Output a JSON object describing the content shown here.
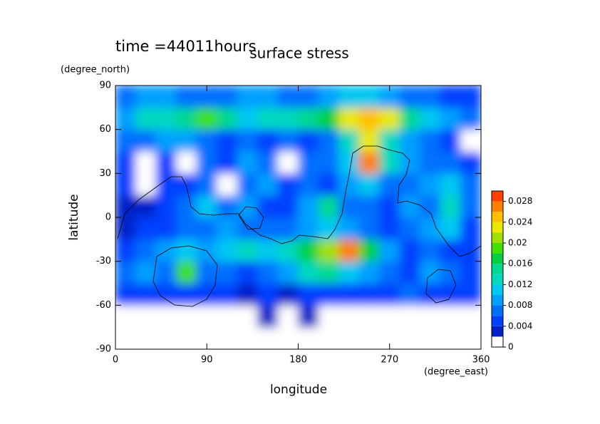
{
  "chart_data": {
    "type": "contour",
    "title": "time =44011hours",
    "subtitle": "surface stress",
    "xlabel": "longitude",
    "xunit": "(degree_east)",
    "ylabel": "latitude",
    "yunit": "(degree_north)",
    "xlim": [
      0,
      360
    ],
    "xticks": [
      0,
      90,
      180,
      270,
      360
    ],
    "ylim": [
      -90,
      90
    ],
    "yticks": [
      -90,
      -60,
      -30,
      0,
      30,
      60,
      90
    ],
    "x": [
      10,
      30,
      50,
      70,
      90,
      110,
      130,
      150,
      170,
      190,
      210,
      230,
      250,
      270,
      290,
      310,
      330,
      350
    ],
    "y": [
      -82.5,
      -67.5,
      -52.5,
      -37.5,
      -22.5,
      -7.5,
      7.5,
      22.5,
      37.5,
      52.5,
      67.5,
      82.5
    ],
    "z": [
      [
        0,
        0,
        0,
        0,
        0,
        0,
        0,
        0,
        0,
        0,
        0,
        0,
        0,
        0,
        0,
        0,
        0,
        0
      ],
      [
        0,
        0,
        0,
        0,
        0,
        0,
        0,
        0.003,
        0,
        0.003,
        0,
        0,
        0,
        0,
        0,
        0,
        0,
        0
      ],
      [
        0.004,
        0.005,
        0.004,
        0.005,
        0.005,
        0.004,
        0.003,
        0.004,
        0.003,
        0.005,
        0.004,
        0.005,
        0.004,
        0.005,
        0.006,
        0.004,
        0.005,
        0.004
      ],
      [
        0.006,
        0.008,
        0.006,
        0.018,
        0.007,
        0.006,
        0.005,
        0.006,
        0.008,
        0.012,
        0.014,
        0.01,
        0.008,
        0.006,
        0.005,
        0.008,
        0.006,
        0.005
      ],
      [
        0.004,
        0.006,
        0.008,
        0.01,
        0.008,
        0.01,
        0.012,
        0.01,
        0.012,
        0.016,
        0.02,
        0.026,
        0.016,
        0.008,
        0.005,
        0.006,
        0.005,
        0.004
      ],
      [
        0.003,
        0.004,
        0.005,
        0.006,
        0.006,
        0.008,
        0.006,
        0.007,
        0.006,
        0.008,
        0.01,
        0.008,
        0.006,
        0.005,
        0.006,
        0.008,
        0.01,
        0.005
      ],
      [
        0.002,
        0.003,
        0.004,
        0.006,
        0.01,
        0.006,
        0.008,
        0.005,
        0.004,
        0.008,
        0.014,
        0.006,
        0.006,
        0.005,
        0.008,
        0.006,
        0.012,
        0.006
      ],
      [
        0.005,
        0.001,
        0.004,
        0.005,
        0.006,
        0.001,
        0.006,
        0.008,
        0.004,
        0.006,
        0.005,
        0.008,
        0.01,
        0.006,
        0.006,
        0.008,
        0.01,
        0.006
      ],
      [
        0.004,
        0.001,
        0.005,
        0.001,
        0.006,
        0.004,
        0.008,
        0.006,
        0.001,
        0.006,
        0.006,
        0.01,
        0.026,
        0.012,
        0.008,
        0.006,
        0.006,
        0.004
      ],
      [
        0.006,
        0.006,
        0.008,
        0.008,
        0.006,
        0.004,
        0.006,
        0.005,
        0.006,
        0.005,
        0.006,
        0.012,
        0.022,
        0.012,
        0.008,
        0.006,
        0.004,
        0.001
      ],
      [
        0.008,
        0.012,
        0.012,
        0.014,
        0.018,
        0.014,
        0.01,
        0.012,
        0.012,
        0.014,
        0.016,
        0.022,
        0.024,
        0.022,
        0.014,
        0.01,
        0.008,
        0.006
      ],
      [
        0.006,
        0.008,
        0.008,
        0.006,
        0.006,
        0.006,
        0.008,
        0.008,
        0.006,
        0.006,
        0.008,
        0.01,
        0.01,
        0.008,
        0.006,
        0.006,
        0.005,
        0.004
      ]
    ],
    "levels": [
      0,
      0.002,
      0.004,
      0.006,
      0.008,
      0.01,
      0.012,
      0.014,
      0.016,
      0.018,
      0.02,
      0.022,
      0.024,
      0.026,
      0.028,
      0.03
    ],
    "colors": [
      "#ffffff",
      "#0020c8",
      "#0040ff",
      "#0070ff",
      "#00a0ff",
      "#00c8f0",
      "#00d8c0",
      "#00d890",
      "#00d040",
      "#40e000",
      "#a0e000",
      "#e8e800",
      "#ffc000",
      "#ff8000",
      "#ff4000"
    ],
    "colorbar_ticks": [
      0,
      0.004,
      0.008,
      0.012,
      0.016,
      0.02,
      0.024,
      0.028
    ]
  }
}
